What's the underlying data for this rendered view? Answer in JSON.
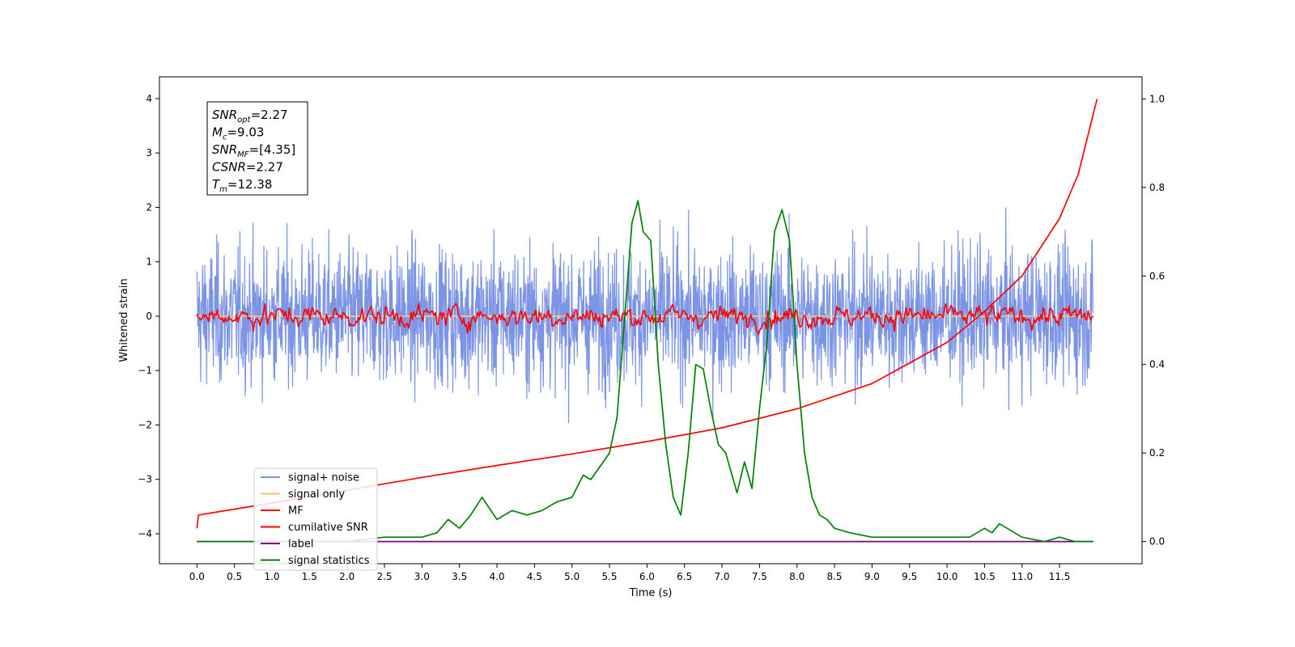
{
  "chart_data": {
    "type": "line",
    "title": "",
    "xlabel": "Time (s)",
    "ylabel": "Whitened strain",
    "y2label": "",
    "xlim": [
      -0.5,
      12.6
    ],
    "ylim": [
      -4.55,
      4.4
    ],
    "y2lim": [
      -0.05,
      1.05
    ],
    "grid": false,
    "legend_position": "lower-left",
    "x_ticks": [
      "0.0",
      "0.5",
      "1.0",
      "1.5",
      "2.0",
      "2.5",
      "3.0",
      "3.5",
      "4.0",
      "4.5",
      "5.0",
      "5.5",
      "6.0",
      "6.5",
      "7.0",
      "7.5",
      "8.0",
      "8.5",
      "9.0",
      "9.5",
      "10.0",
      "10.5",
      "11.0",
      "11.5"
    ],
    "y_ticks": [
      "4",
      "3",
      "2",
      "1",
      "0",
      "−1",
      "−2",
      "−3",
      "−4"
    ],
    "y_tick_values": [
      4,
      3,
      2,
      1,
      0,
      -1,
      -2,
      -3,
      -4
    ],
    "y2_ticks": [
      "1.0",
      "0.8",
      "0.6",
      "0.4",
      "0.2",
      "0.0"
    ],
    "y2_tick_values": [
      1.0,
      0.8,
      0.6,
      0.4,
      0.2,
      0.0
    ],
    "annotation": {
      "lines": [
        {
          "base": "SNR",
          "sub": "opt",
          "value": "=2.27"
        },
        {
          "base": "M",
          "sub": "c",
          "value": "=9.03"
        },
        {
          "base": "SNR",
          "sub": "MF",
          "value": "=[4.35]"
        },
        {
          "base": "CSNR",
          "sub": "",
          "value": "=2.27"
        },
        {
          "base": "T",
          "sub": "m",
          "value": "=12.38"
        }
      ]
    },
    "series": [
      {
        "name": "signal+ noise",
        "color": "#7b94e6",
        "axis": "left",
        "style": "noise",
        "amplitude_range": [
          -3.5,
          4.0
        ]
      },
      {
        "name": "signal only",
        "color": "#f5c27a",
        "axis": "left",
        "style": "flat",
        "value": 0
      },
      {
        "name": "MF",
        "color": "#ff0000",
        "axis": "left",
        "style": "filtered",
        "amplitude_range": [
          -0.4,
          0.7
        ]
      },
      {
        "name": "cumilative SNR",
        "color": "#ff0000",
        "axis": "right",
        "x": [
          0.0,
          0.02,
          1.0,
          2.0,
          3.0,
          4.0,
          5.0,
          6.0,
          7.0,
          8.0,
          9.0,
          10.0,
          10.5,
          11.0,
          11.5,
          11.75,
          12.0
        ],
        "values": [
          0.03,
          0.06,
          0.087,
          0.116,
          0.145,
          0.172,
          0.198,
          0.226,
          0.257,
          0.3,
          0.357,
          0.45,
          0.52,
          0.6,
          0.73,
          0.83,
          1.0
        ]
      },
      {
        "name": "label",
        "color": "#800080",
        "axis": "right",
        "x": [
          0.0,
          11.95
        ],
        "values": [
          0.0,
          0.0
        ]
      },
      {
        "name": "signal statistics",
        "color": "#008000",
        "axis": "right",
        "x": [
          0.0,
          0.5,
          1.0,
          1.5,
          2.0,
          2.5,
          3.0,
          3.2,
          3.35,
          3.5,
          3.65,
          3.8,
          4.0,
          4.2,
          4.4,
          4.6,
          4.8,
          5.0,
          5.15,
          5.25,
          5.5,
          5.6,
          5.7,
          5.8,
          5.88,
          5.95,
          6.05,
          6.15,
          6.25,
          6.35,
          6.45,
          6.55,
          6.65,
          6.75,
          6.85,
          6.95,
          7.05,
          7.2,
          7.3,
          7.4,
          7.5,
          7.6,
          7.7,
          7.8,
          7.9,
          8.0,
          8.1,
          8.2,
          8.3,
          8.4,
          8.5,
          8.7,
          9.0,
          9.3,
          9.5,
          9.8,
          10.0,
          10.3,
          10.5,
          10.6,
          10.7,
          10.8,
          11.0,
          11.3,
          11.5,
          11.7,
          11.95
        ],
        "values": [
          0.0,
          0.0,
          0.0,
          0.0,
          0.0,
          0.01,
          0.01,
          0.02,
          0.05,
          0.03,
          0.06,
          0.1,
          0.05,
          0.07,
          0.06,
          0.07,
          0.09,
          0.1,
          0.15,
          0.14,
          0.2,
          0.28,
          0.5,
          0.72,
          0.77,
          0.7,
          0.68,
          0.4,
          0.22,
          0.1,
          0.06,
          0.2,
          0.4,
          0.39,
          0.3,
          0.22,
          0.2,
          0.11,
          0.18,
          0.12,
          0.3,
          0.45,
          0.7,
          0.75,
          0.68,
          0.4,
          0.2,
          0.1,
          0.06,
          0.05,
          0.03,
          0.02,
          0.01,
          0.01,
          0.01,
          0.01,
          0.01,
          0.01,
          0.03,
          0.02,
          0.04,
          0.03,
          0.01,
          0.0,
          0.01,
          0.0,
          0.0
        ]
      }
    ]
  }
}
